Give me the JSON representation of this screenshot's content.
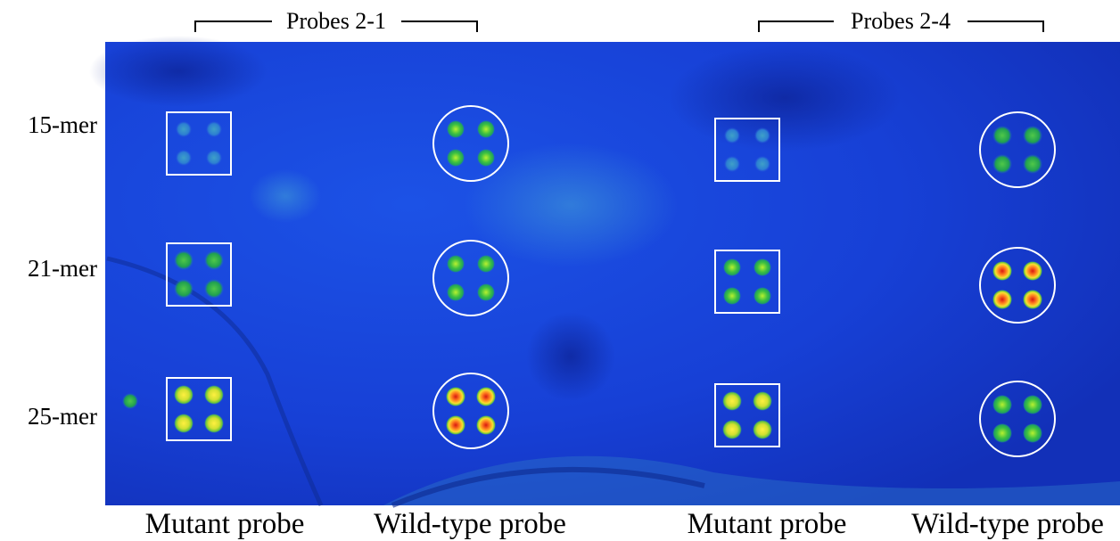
{
  "headers": [
    "Probes 2-1",
    "Probes 2-4"
  ],
  "rows": [
    "15-mer",
    "21-mer",
    "25-mer"
  ],
  "columns": [
    "Mutant probe",
    "Wild-type probe",
    "Mutant probe",
    "Wild-type probe"
  ]
}
